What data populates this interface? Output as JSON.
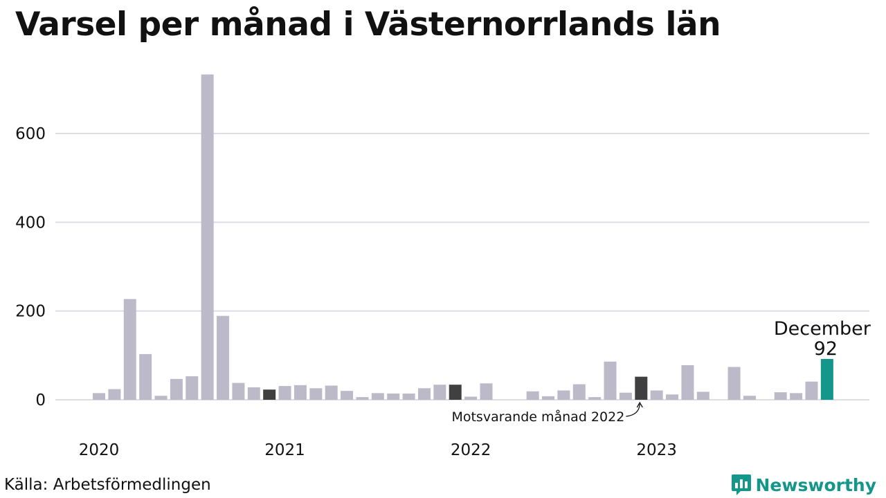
{
  "title": "Varsel per månad i Västernorrlands län",
  "source": "Källa: Arbetsförmedlingen",
  "brand": "Newsworthy",
  "colors": {
    "bar": "#bcbac8",
    "bar_comparison": "#404040",
    "bar_highlight": "#15968a",
    "grid": "#dedde3",
    "brand": "#15968a"
  },
  "chart_data": {
    "type": "bar",
    "xlabel": "",
    "ylabel": "",
    "ylim": [
      0,
      700
    ],
    "yticks": [
      0,
      200,
      400,
      600
    ],
    "grid": true,
    "x_tick_labels": [
      "2020",
      "2021",
      "2022",
      "2023"
    ],
    "x": [
      "2020-01",
      "2020-02",
      "2020-03",
      "2020-04",
      "2020-05",
      "2020-06",
      "2020-07",
      "2020-08",
      "2020-09",
      "2020-10",
      "2020-11",
      "2020-12",
      "2021-01",
      "2021-02",
      "2021-03",
      "2021-04",
      "2021-05",
      "2021-06",
      "2021-07",
      "2021-08",
      "2021-09",
      "2021-10",
      "2021-11",
      "2021-12",
      "2022-01",
      "2022-02",
      "2022-03",
      "2022-04",
      "2022-05",
      "2022-06",
      "2022-07",
      "2022-08",
      "2022-09",
      "2022-10",
      "2022-11",
      "2022-12",
      "2023-01",
      "2023-02",
      "2023-03",
      "2023-04",
      "2023-05",
      "2023-06",
      "2023-07",
      "2023-08",
      "2023-09",
      "2023-10",
      "2023-11",
      "2023-12"
    ],
    "values": [
      15,
      24,
      227,
      103,
      9,
      47,
      53,
      733,
      189,
      38,
      28,
      23,
      31,
      33,
      26,
      32,
      20,
      6,
      15,
      14,
      14,
      26,
      34,
      34,
      7,
      37,
      0,
      0,
      19,
      8,
      21,
      35,
      6,
      86,
      16,
      52,
      21,
      12,
      78,
      18,
      0,
      74,
      9,
      0,
      17,
      15,
      41,
      92
    ],
    "comparison_months": [
      "2020-12",
      "2021-12",
      "2022-12"
    ],
    "highlight": {
      "month": "2023-12",
      "label": "December",
      "value": 92
    },
    "annotations": [
      {
        "text": "Motsvarande månad 2022",
        "target": "2022-12"
      }
    ]
  }
}
